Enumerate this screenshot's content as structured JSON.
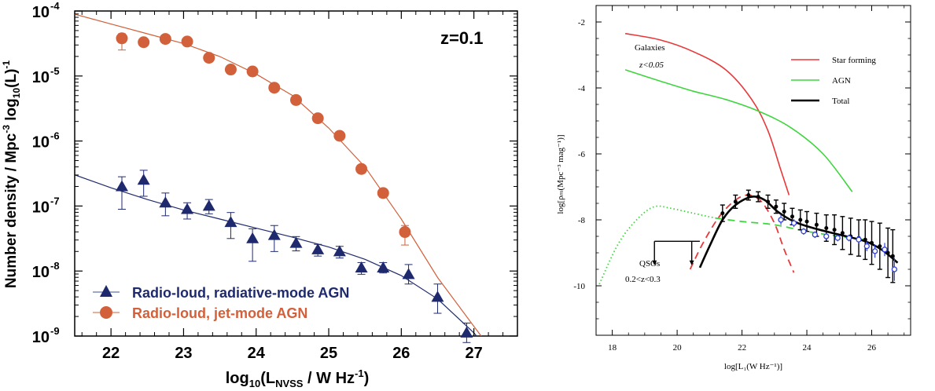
{
  "chart_data": [
    {
      "type": "scatter",
      "log_y": true,
      "xlim": [
        21.5,
        27.6
      ],
      "ylim_exponent": [
        -9,
        -4
      ],
      "x_ticks": [
        "22",
        "23",
        "24",
        "25",
        "26",
        "27"
      ],
      "y_ticks": [
        {
          "base": "10",
          "exp": "-9"
        },
        {
          "base": "10",
          "exp": "-8"
        },
        {
          "base": "10",
          "exp": "-7"
        },
        {
          "base": "10",
          "exp": "-6"
        },
        {
          "base": "10",
          "exp": "-5"
        },
        {
          "base": "10",
          "exp": "-4"
        }
      ],
      "annotation": "z=0.1",
      "xlabel": {
        "pre": "log",
        "sub1": "10",
        "mid": "(L",
        "sub2": "NVSS",
        "post": " / W Hz",
        "sup": "-1",
        "end": ")"
      },
      "ylabel": {
        "pre": "Number density / Mpc",
        "sup1": "-3",
        "mid": " log",
        "sub": "10",
        "post": "(L)",
        "sup2": "-1"
      },
      "series": [
        {
          "name": "Radio-loud, radiative-mode AGN",
          "color": "#1f2a6e",
          "marker": "triangle",
          "x": [
            22.15,
            22.45,
            22.75,
            23.05,
            23.35,
            23.65,
            23.95,
            24.25,
            24.55,
            24.85,
            25.15,
            25.45,
            25.75,
            26.1,
            26.5,
            26.9
          ],
          "y_exp": [
            -6.7,
            -6.6,
            -6.95,
            -7.05,
            -7.0,
            -7.25,
            -7.5,
            -7.45,
            -7.57,
            -7.67,
            -7.7,
            -7.95,
            -7.95,
            -8.05,
            -8.4,
            -8.95
          ],
          "err_lo": [
            0.35,
            0.25,
            0.2,
            0.15,
            0.12,
            0.25,
            0.35,
            0.25,
            0.12,
            0.1,
            0.1,
            0.1,
            0.08,
            0.15,
            0.25,
            0.15
          ],
          "err_hi": [
            0.15,
            0.15,
            0.15,
            0.1,
            0.1,
            0.15,
            0.15,
            0.15,
            0.1,
            0.08,
            0.08,
            0.08,
            0.08,
            0.15,
            0.2,
            0.15
          ],
          "fit_x": [
            21.5,
            22.0,
            22.5,
            23.0,
            23.5,
            24.0,
            24.5,
            25.0,
            25.5,
            26.0,
            26.5,
            27.0,
            27.5
          ],
          "fit_y_exp": [
            -6.52,
            -6.72,
            -6.9,
            -7.06,
            -7.2,
            -7.34,
            -7.48,
            -7.63,
            -7.82,
            -8.07,
            -8.43,
            -8.95,
            -9.62
          ]
        },
        {
          "name": "Radio-loud, jet-mode AGN",
          "color": "#d2603a",
          "marker": "circle",
          "x": [
            22.15,
            22.45,
            22.75,
            23.05,
            23.35,
            23.65,
            23.95,
            24.25,
            24.55,
            24.85,
            25.15,
            25.45,
            25.75,
            26.05
          ],
          "y_exp": [
            -4.42,
            -4.48,
            -4.43,
            -4.47,
            -4.72,
            -4.9,
            -4.93,
            -5.18,
            -5.37,
            -5.65,
            -5.92,
            -6.43,
            -6.8,
            -7.4
          ],
          "err_lo": [
            0.18,
            0.0,
            0.0,
            0.0,
            0.0,
            0.0,
            0.0,
            0.0,
            0.0,
            0.0,
            0.0,
            0.0,
            0.07,
            0.2
          ],
          "err_hi": [
            0.07,
            0.0,
            0.0,
            0.0,
            0.0,
            0.0,
            0.0,
            0.0,
            0.0,
            0.0,
            0.0,
            0.0,
            0.05,
            0.1
          ],
          "fit_x": [
            21.5,
            22.0,
            22.5,
            23.0,
            23.5,
            24.0,
            24.5,
            25.0,
            25.5,
            26.0,
            26.5,
            27.0,
            27.1
          ],
          "fit_y_exp": [
            -4.05,
            -4.2,
            -4.35,
            -4.5,
            -4.7,
            -4.97,
            -5.3,
            -5.8,
            -6.4,
            -7.2,
            -8.1,
            -8.85,
            -9.0
          ]
        }
      ]
    },
    {
      "type": "line",
      "xlim": [
        17.5,
        27.2
      ],
      "ylim": [
        -11.5,
        -1.5
      ],
      "x_ticks": [
        "18",
        "20",
        "22",
        "24",
        "26"
      ],
      "y_ticks": [
        "-2",
        "-4",
        "-6",
        "-8",
        "-10"
      ],
      "xlabel": "log[L₁(W Hz⁻¹)]",
      "ylabel": "log[ρₘ(Mpc⁻³ mag⁻¹)]",
      "annotations": {
        "galaxies": "Galaxies",
        "galaxies_z": "z<0.05",
        "qsos": "QSOs",
        "qsos_z": "0.2<z<0.3"
      },
      "legend": [
        {
          "label": "Star forming",
          "color": "#e8383a"
        },
        {
          "label": "AGN",
          "color": "#3dd63d"
        },
        {
          "label": "Total",
          "color": "#000000"
        }
      ],
      "curves": {
        "star_forming": {
          "color": "#e8383a",
          "x": [
            18.4,
            19.5,
            20.5,
            21.5,
            22.3,
            22.8,
            23.2,
            23.45
          ],
          "y": [
            -2.35,
            -2.55,
            -2.9,
            -3.45,
            -4.35,
            -5.3,
            -6.5,
            -7.25
          ]
        },
        "agn": {
          "color": "#3dd63d",
          "x": [
            18.4,
            19.5,
            20.5,
            21.5,
            22.5,
            23.5,
            24.5,
            25.4
          ],
          "y": [
            -3.45,
            -3.8,
            -4.1,
            -4.35,
            -4.7,
            -5.2,
            -6.0,
            -7.15
          ]
        },
        "qso_agn_dotted": {
          "color": "#3dd63d",
          "x": [
            17.6,
            18.2,
            18.8,
            19.3,
            19.8,
            20.5,
            21.2
          ],
          "y": [
            -9.95,
            -8.7,
            -7.95,
            -7.6,
            -7.65,
            -7.8,
            -7.95
          ]
        },
        "qso_agn_dashed": {
          "color": "#3dd63d",
          "x": [
            21.2,
            22.0,
            23.0,
            24.0,
            25.0,
            25.8
          ],
          "y": [
            -7.95,
            -8.05,
            -8.15,
            -8.35,
            -8.5,
            -8.6
          ]
        },
        "qso_sf_dashed": {
          "color": "#e8383a",
          "x": [
            20.4,
            20.8,
            21.3,
            21.8,
            22.2,
            22.6,
            23.0,
            23.3,
            23.6
          ],
          "y": [
            -9.5,
            -8.7,
            -7.9,
            -7.4,
            -7.25,
            -7.45,
            -8.1,
            -8.9,
            -9.6
          ]
        },
        "total": {
          "color": "#000000",
          "x": [
            20.7,
            21.0,
            21.4,
            21.8,
            22.3,
            22.7,
            23.1,
            23.6,
            24.2,
            25.0,
            25.8,
            26.3,
            26.8
          ],
          "y": [
            -9.45,
            -8.8,
            -8.0,
            -7.55,
            -7.3,
            -7.4,
            -7.75,
            -8.05,
            -8.25,
            -8.45,
            -8.65,
            -8.9,
            -9.3
          ]
        }
      },
      "black_points": {
        "x": [
          21.4,
          21.8,
          22.2,
          22.5,
          22.8,
          23.05,
          23.3,
          23.55,
          23.8,
          24.0,
          24.3,
          24.6,
          24.85,
          25.1,
          25.35,
          25.6,
          25.8,
          26.0,
          26.25,
          26.5,
          26.65
        ],
        "y": [
          -7.8,
          -7.45,
          -7.25,
          -7.3,
          -7.45,
          -7.6,
          -7.75,
          -7.9,
          -8.0,
          -8.05,
          -8.15,
          -8.25,
          -8.3,
          -8.4,
          -8.5,
          -8.55,
          -8.6,
          -8.7,
          -8.8,
          -9.0,
          -9.1
        ],
        "err": [
          0.25,
          0.2,
          0.15,
          0.15,
          0.2,
          0.2,
          0.25,
          0.25,
          0.3,
          0.3,
          0.35,
          0.4,
          0.45,
          0.5,
          0.55,
          0.55,
          0.6,
          0.65,
          0.7,
          0.75,
          0.8
        ]
      },
      "blue_points": {
        "color": "#2f3fe0",
        "x": [
          23.2,
          23.6,
          23.9,
          24.25,
          24.6,
          24.95,
          25.3,
          25.6,
          25.85,
          26.1,
          26.4,
          26.7
        ],
        "y": [
          -8.0,
          -8.1,
          -8.35,
          -8.45,
          -8.5,
          -8.55,
          -8.55,
          -8.6,
          -8.8,
          -8.95,
          -8.9,
          -9.5
        ],
        "err": [
          0.15,
          0.12,
          0.1,
          0.1,
          0.1,
          0.1,
          0.1,
          0.12,
          0.15,
          0.2,
          0.2,
          0.35
        ]
      },
      "upper_limit": {
        "x1": 19.3,
        "x2": 20.7,
        "y": -8.65,
        "arrow_x": [
          19.3,
          20.45
        ],
        "arrow_len": 0.7
      }
    }
  ]
}
